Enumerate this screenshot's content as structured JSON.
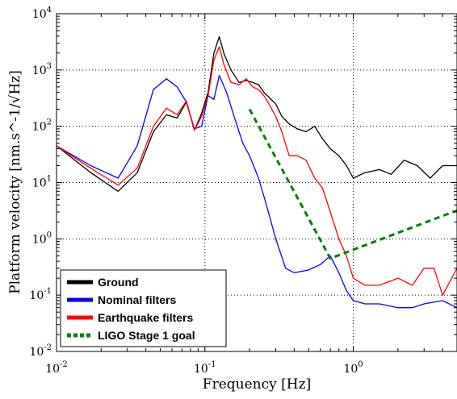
{
  "chart_data": {
    "type": "line",
    "title": "",
    "xlabel_text": "Frequency [Hz]",
    "ylabel_text": "Platform velocity [nm.s^-1/√Hz]",
    "xlim": [
      0.01,
      5
    ],
    "ylim": [
      0.01,
      10000
    ],
    "xscale": "log",
    "yscale": "log",
    "grid": "dotted, major decades",
    "x_ticks": [
      {
        "base": "10",
        "exp": "-2"
      },
      {
        "base": "10",
        "exp": "-1"
      },
      {
        "base": "10",
        "exp": "0"
      }
    ],
    "y_ticks": [
      {
        "base": "10",
        "exp": "-2"
      },
      {
        "base": "10",
        "exp": "-1"
      },
      {
        "base": "10",
        "exp": "0"
      },
      {
        "base": "10",
        "exp": "1"
      },
      {
        "base": "10",
        "exp": "2"
      },
      {
        "base": "10",
        "exp": "3"
      },
      {
        "base": "10",
        "exp": "4"
      }
    ],
    "legend_position": "bottom-left",
    "series": [
      {
        "name": "Ground",
        "color": "#000000",
        "style": "solid",
        "x": [
          0.01,
          0.017,
          0.026,
          0.035,
          0.045,
          0.055,
          0.065,
          0.075,
          0.085,
          0.095,
          0.105,
          0.115,
          0.125,
          0.135,
          0.15,
          0.17,
          0.19,
          0.21,
          0.23,
          0.25,
          0.27,
          0.3,
          0.33,
          0.37,
          0.42,
          0.48,
          0.55,
          0.62,
          0.7,
          0.8,
          0.9,
          1.0,
          1.2,
          1.5,
          1.8,
          2.2,
          2.7,
          3.3,
          4.0,
          5.0
        ],
        "y": [
          45,
          15,
          7,
          15,
          80,
          160,
          140,
          270,
          85,
          170,
          400,
          2000,
          3900,
          1900,
          1000,
          600,
          650,
          600,
          550,
          400,
          330,
          250,
          150,
          110,
          90,
          80,
          100,
          60,
          40,
          30,
          20,
          12,
          15,
          17,
          14,
          25,
          20,
          12,
          20,
          20
        ]
      },
      {
        "name": "Nominal filters",
        "color": "#0000ff",
        "style": "solid",
        "x": [
          0.01,
          0.017,
          0.026,
          0.035,
          0.045,
          0.055,
          0.065,
          0.075,
          0.085,
          0.095,
          0.105,
          0.115,
          0.125,
          0.14,
          0.16,
          0.18,
          0.2,
          0.23,
          0.26,
          0.3,
          0.35,
          0.4,
          0.5,
          0.6,
          0.7,
          0.8,
          0.9,
          1.0,
          1.2,
          1.5,
          2.0,
          2.5,
          3.0,
          4.0,
          5.0
        ],
        "y": [
          45,
          20,
          12,
          45,
          450,
          700,
          500,
          270,
          90,
          100,
          350,
          300,
          800,
          400,
          130,
          50,
          30,
          12,
          4,
          1,
          0.3,
          0.25,
          0.28,
          0.35,
          0.5,
          0.25,
          0.12,
          0.08,
          0.07,
          0.07,
          0.06,
          0.06,
          0.07,
          0.08,
          0.06
        ]
      },
      {
        "name": "Earthquake filters",
        "color": "#ff0000",
        "style": "solid",
        "x": [
          0.01,
          0.017,
          0.026,
          0.035,
          0.045,
          0.055,
          0.065,
          0.075,
          0.085,
          0.095,
          0.105,
          0.115,
          0.125,
          0.135,
          0.15,
          0.17,
          0.19,
          0.21,
          0.23,
          0.25,
          0.27,
          0.3,
          0.33,
          0.37,
          0.42,
          0.48,
          0.55,
          0.62,
          0.7,
          0.8,
          0.9,
          1.0,
          1.2,
          1.5,
          2.0,
          2.5,
          3.0,
          3.5,
          4.0,
          5.0
        ],
        "y": [
          45,
          18,
          9,
          18,
          100,
          210,
          160,
          280,
          85,
          150,
          350,
          1500,
          2600,
          1200,
          600,
          550,
          700,
          500,
          450,
          350,
          250,
          150,
          80,
          30,
          30,
          25,
          12,
          8,
          3,
          1,
          0.5,
          0.2,
          0.15,
          0.15,
          0.2,
          0.15,
          0.3,
          0.3,
          0.1,
          0.3
        ]
      },
      {
        "name": "LIGO Stage 1 goal",
        "color": "#008000",
        "style": "dashed",
        "x": [
          0.2,
          0.7,
          5.0
        ],
        "y": [
          200,
          0.45,
          3.2
        ]
      }
    ]
  }
}
